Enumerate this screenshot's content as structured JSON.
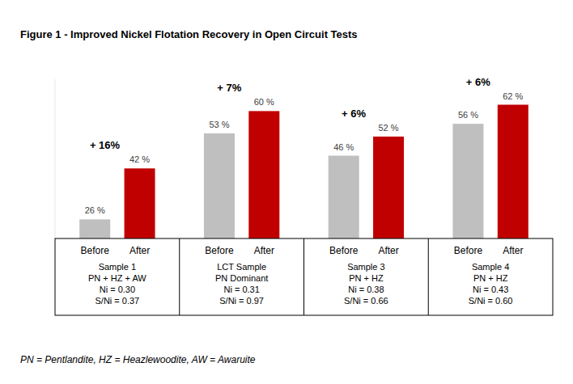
{
  "chart_data": {
    "type": "bar",
    "title": "Figure 1 - Improved Nickel Flotation Recovery in Open Circuit Tests",
    "categories": [
      "Sample 1",
      "LCT Sample",
      "Sample 3",
      "Sample 4"
    ],
    "category_details": [
      [
        "PN + HZ + AW",
        "Ni = 0.30",
        "S/Ni = 0.37"
      ],
      [
        "PN Dominant",
        "Ni = 0.31",
        "S/Ni = 0.97"
      ],
      [
        "PN + HZ",
        "Ni = 0.38",
        "S/Ni = 0.66"
      ],
      [
        "PN + HZ",
        "Ni = 0.43",
        "S/Ni = 0.60"
      ]
    ],
    "series": [
      {
        "name": "Before",
        "color": "#bfbfbf",
        "values": [
          26,
          53,
          46,
          56
        ],
        "value_labels": [
          "26 %",
          "53 %",
          "46 %",
          "56 %"
        ]
      },
      {
        "name": "After",
        "color": "#c00000",
        "values": [
          42,
          60,
          52,
          62
        ],
        "value_labels": [
          "42 %",
          "60 %",
          "52 %",
          "62 %"
        ]
      }
    ],
    "differences": {
      "values": [
        16,
        7,
        6,
        6
      ],
      "labels": [
        "+ 16%",
        "+ 7%",
        "+ 6%",
        "+ 6%"
      ]
    },
    "footnote": "PN = Pentlandite, HZ = Heazlewoodite, AW = Awaruite",
    "ylim": [
      20,
      70
    ],
    "data_labels": true,
    "grid": false,
    "tick_labels": "x"
  }
}
